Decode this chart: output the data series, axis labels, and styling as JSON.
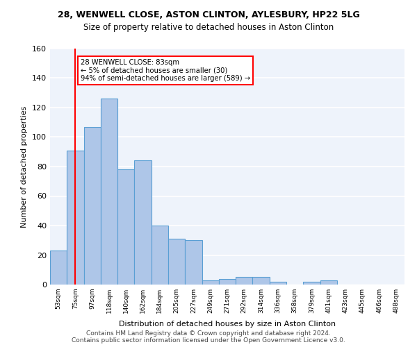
{
  "title1": "28, WENWELL CLOSE, ASTON CLINTON, AYLESBURY, HP22 5LG",
  "title2": "Size of property relative to detached houses in Aston Clinton",
  "xlabel": "Distribution of detached houses by size in Aston Clinton",
  "ylabel": "Number of detached properties",
  "bin_labels": [
    "53sqm",
    "75sqm",
    "97sqm",
    "118sqm",
    "140sqm",
    "162sqm",
    "184sqm",
    "205sqm",
    "227sqm",
    "249sqm",
    "271sqm",
    "292sqm",
    "314sqm",
    "336sqm",
    "358sqm",
    "379sqm",
    "401sqm",
    "423sqm",
    "445sqm",
    "466sqm",
    "488sqm"
  ],
  "bar_values": [
    23,
    91,
    107,
    126,
    78,
    84,
    40,
    31,
    30,
    3,
    4,
    5,
    5,
    2,
    0,
    2,
    3,
    0,
    0,
    0,
    0
  ],
  "bar_color": "#aec6e8",
  "bar_edge_color": "#5a9fd4",
  "red_line_x": 1,
  "annotation_text": "28 WENWELL CLOSE: 83sqm\n← 5% of detached houses are smaller (30)\n94% of semi-detached houses are larger (589) →",
  "annotation_box_color": "white",
  "annotation_box_edge": "red",
  "footnote": "Contains HM Land Registry data © Crown copyright and database right 2024.\nContains public sector information licensed under the Open Government Licence v3.0.",
  "ylim": [
    0,
    160
  ],
  "yticks": [
    0,
    20,
    40,
    60,
    80,
    100,
    120,
    140,
    160
  ],
  "background_color": "#eef3fb",
  "grid_color": "white"
}
